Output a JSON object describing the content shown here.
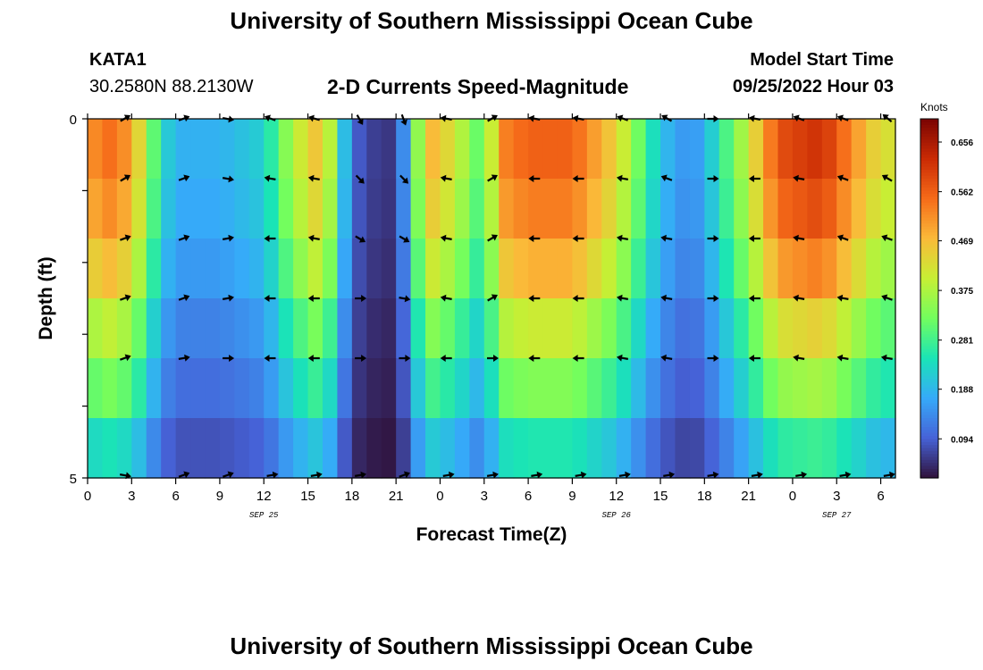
{
  "header": {
    "title": "University of Southern Mississippi Ocean Cube",
    "station": "KATA1",
    "coords": "30.2580N  88.2130W",
    "subtitle": "2-D Currents Speed-Magnitude",
    "model_start_label": "Model Start Time",
    "model_start_value": "09/25/2022 Hour 03",
    "footer_title": "University of Southern Mississippi Ocean Cube"
  },
  "chart_data": {
    "type": "heatmap",
    "title": "2-D Currents Speed-Magnitude",
    "xlabel": "Forecast Time(Z)",
    "ylabel": "Depth (ft)",
    "x_ticks": [
      "0",
      "3",
      "6",
      "9",
      "12",
      "15",
      "18",
      "21",
      "0",
      "3",
      "6",
      "9",
      "12",
      "15",
      "18",
      "21",
      "0",
      "3",
      "6"
    ],
    "date_labels": [
      {
        "text": "SEP 25",
        "x_index": 12
      },
      {
        "text": "SEP 26",
        "x_index": 36
      },
      {
        "text": "SEP 27",
        "x_index": 51
      }
    ],
    "y_tick_labels": {
      "top": "0",
      "bottom": "5"
    },
    "y_range_ft": [
      0,
      5
    ],
    "depth_layers": 6,
    "hours": 55,
    "colorbar": {
      "label": "Knots",
      "ticks": [
        "0.656",
        "0.562",
        "0.469",
        "0.375",
        "0.281",
        "0.188",
        "0.094"
      ],
      "range": [
        0.02,
        0.7
      ],
      "colors": [
        "#30123b",
        "#4662d7",
        "#36aaf9",
        "#1ae4b6",
        "#72fe5e",
        "#c7ef34",
        "#faba39",
        "#f66b19",
        "#ca2a04",
        "#7a0403"
      ]
    },
    "speed_profile_knots": {
      "time_hours": [
        0,
        1,
        3,
        5,
        6,
        9,
        12,
        14,
        16,
        18,
        20,
        21,
        22,
        23,
        24,
        26,
        27,
        28,
        30,
        33,
        36,
        39,
        41,
        42,
        45,
        47,
        50,
        54
      ],
      "surface_speed": [
        0.48,
        0.56,
        0.5,
        0.24,
        0.18,
        0.18,
        0.22,
        0.38,
        0.48,
        0.1,
        0.05,
        0.06,
        0.22,
        0.48,
        0.46,
        0.35,
        0.28,
        0.52,
        0.56,
        0.56,
        0.44,
        0.2,
        0.14,
        0.18,
        0.4,
        0.58,
        0.62,
        0.42
      ]
    },
    "depth_factor": [
      1.0,
      0.95,
      0.86,
      0.72,
      0.6,
      0.45
    ],
    "arrow_times": [
      2,
      6,
      9,
      12,
      15,
      18,
      21,
      24,
      27,
      30,
      33,
      36,
      39,
      42,
      45,
      48,
      51,
      54
    ],
    "arrow_angles_deg": [
      [
        -30,
        -20,
        10,
        200,
        195,
        60,
        70,
        190,
        330,
        190,
        190,
        200,
        210,
        0,
        190,
        200,
        200,
        220
      ],
      [
        -30,
        -20,
        10,
        190,
        190,
        45,
        45,
        190,
        330,
        180,
        180,
        190,
        200,
        0,
        180,
        190,
        200,
        210
      ],
      [
        -20,
        -20,
        -10,
        180,
        190,
        30,
        30,
        190,
        330,
        180,
        180,
        190,
        190,
        0,
        180,
        190,
        200,
        200
      ],
      [
        -20,
        -20,
        -10,
        180,
        180,
        0,
        10,
        190,
        330,
        180,
        180,
        190,
        190,
        0,
        180,
        190,
        190,
        200
      ],
      [
        -20,
        -10,
        0,
        180,
        180,
        0,
        0,
        180,
        0,
        180,
        180,
        190,
        190,
        0,
        180,
        190,
        190,
        190
      ],
      [
        10,
        -20,
        -20,
        -10,
        -10,
        -10,
        -20,
        -10,
        -10,
        -10,
        -10,
        -10,
        -10,
        -10,
        -10,
        -10,
        -10,
        -10
      ]
    ]
  }
}
